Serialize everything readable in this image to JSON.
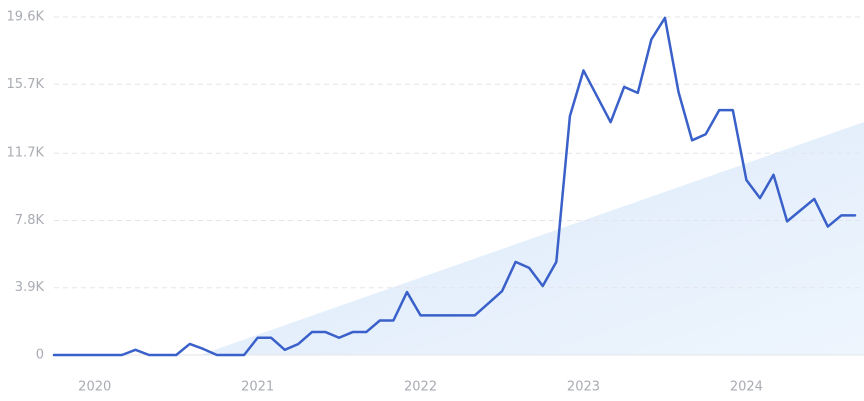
{
  "chart_data": {
    "type": "line",
    "categories": [
      null,
      null,
      null,
      "2020",
      null,
      null,
      null,
      null,
      null,
      null,
      null,
      null,
      null,
      null,
      null,
      "2021",
      null,
      null,
      null,
      null,
      null,
      null,
      null,
      null,
      null,
      null,
      null,
      "2022",
      null,
      null,
      null,
      null,
      null,
      null,
      null,
      null,
      null,
      null,
      null,
      "2023",
      null,
      null,
      null,
      null,
      null,
      null,
      null,
      null,
      null,
      null,
      null,
      "2024",
      null,
      null,
      null,
      null,
      null,
      null,
      null,
      null
    ],
    "values": [
      0,
      0,
      0,
      0,
      0,
      0,
      300,
      0,
      0,
      0,
      640,
      350,
      0,
      0,
      0,
      1000,
      1000,
      300,
      640,
      1330,
      1330,
      1000,
      1330,
      1330,
      2000,
      2000,
      3650,
      2300,
      2300,
      2300,
      2300,
      2300,
      3000,
      3700,
      5400,
      5050,
      4000,
      5400,
      13850,
      16500,
      15000,
      13500,
      15550,
      15200,
      18300,
      19550,
      15250,
      12450,
      12800,
      14200,
      14200,
      10150,
      9100,
      10450,
      7750,
      8400,
      9050,
      7450,
      8100,
      8100
    ],
    "color": "#3a60c9",
    "ylim": [
      0,
      19600
    ],
    "yticks": [
      0,
      {
        "value": 3900,
        "label": "3.9K"
      },
      {
        "value": 7800,
        "label": "7.8K"
      },
      {
        "value": 11700,
        "label": "11.7K"
      },
      {
        "value": 15700,
        "label": "15.7K"
      },
      {
        "value": 19600,
        "label": "19.6K"
      }
    ],
    "grid": true
  }
}
